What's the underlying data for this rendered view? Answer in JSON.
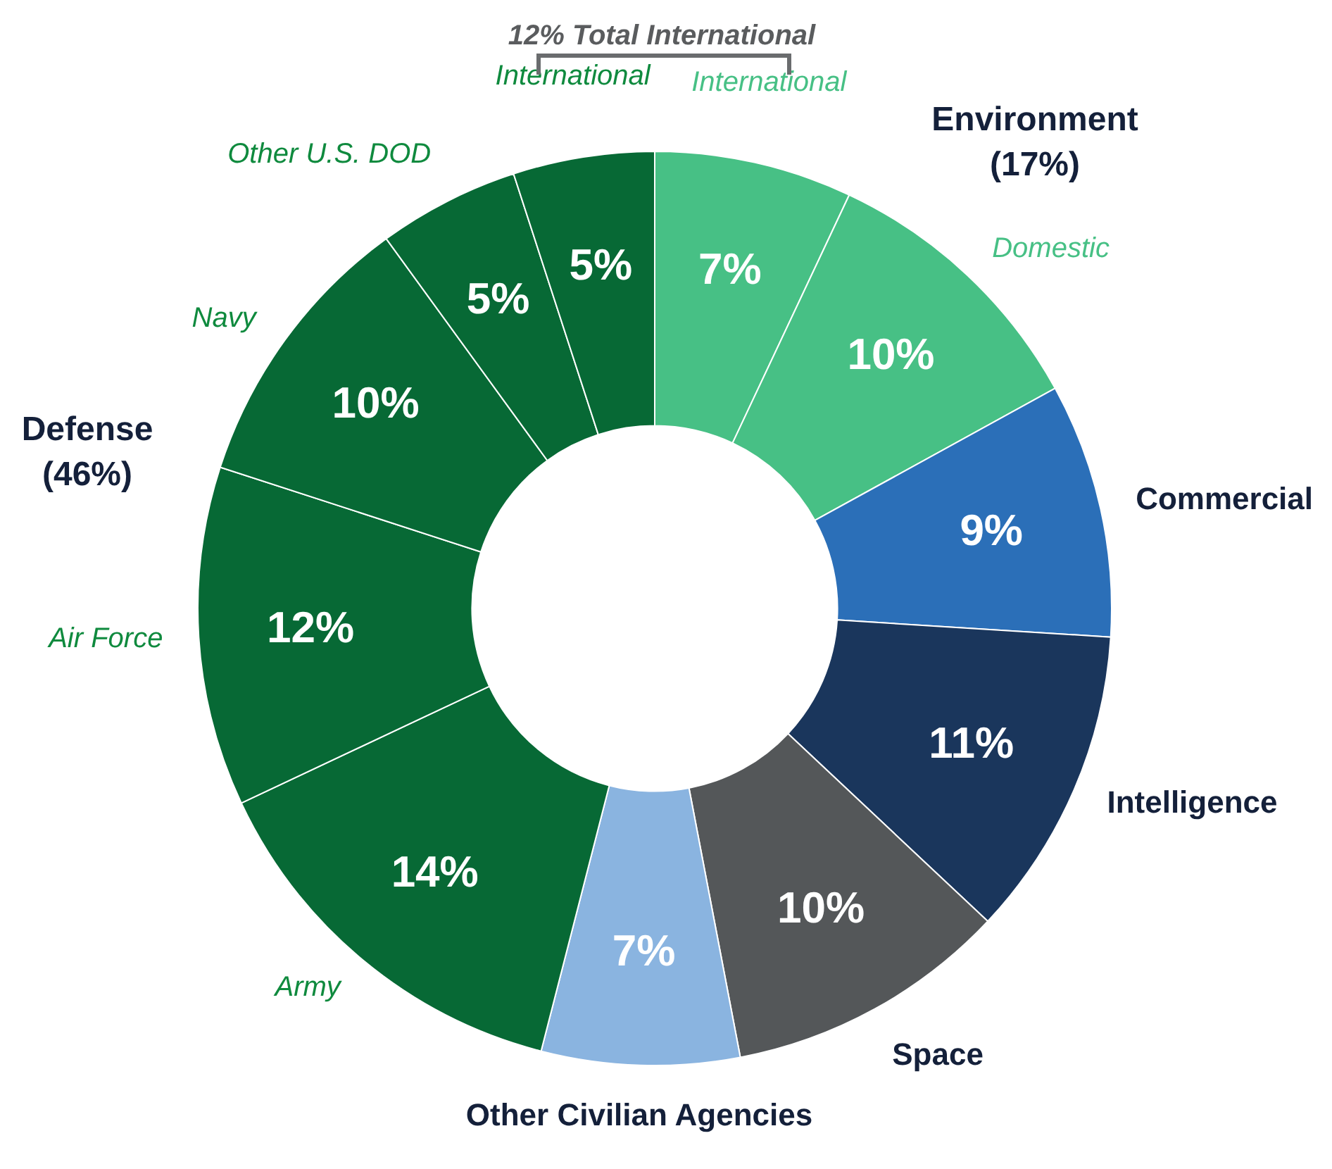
{
  "chart_data": {
    "type": "donut",
    "categories": [
      "International",
      "Domestic",
      "Commercial",
      "Intelligence",
      "Space",
      "Other Civilian Agencies",
      "Army",
      "Air Force",
      "Navy",
      "Other U.S. DOD",
      "International"
    ],
    "values": [
      7,
      10,
      9,
      11,
      10,
      7,
      14,
      12,
      10,
      5,
      5
    ],
    "colors": [
      "#47c085",
      "#47c085",
      "#2b6fb8",
      "#1a365c",
      "#545759",
      "#8ab4e0",
      "#076935",
      "#076935",
      "#076935",
      "#076935",
      "#076935"
    ],
    "value_labels": [
      "7%",
      "10%",
      "9%",
      "11%",
      "10%",
      "7%",
      "14%",
      "12%",
      "10%",
      "5%",
      "5%"
    ],
    "annotations": [
      "12% Total International",
      "Environment (17%)",
      "Defense (46%)"
    ],
    "legend": false
  }
}
